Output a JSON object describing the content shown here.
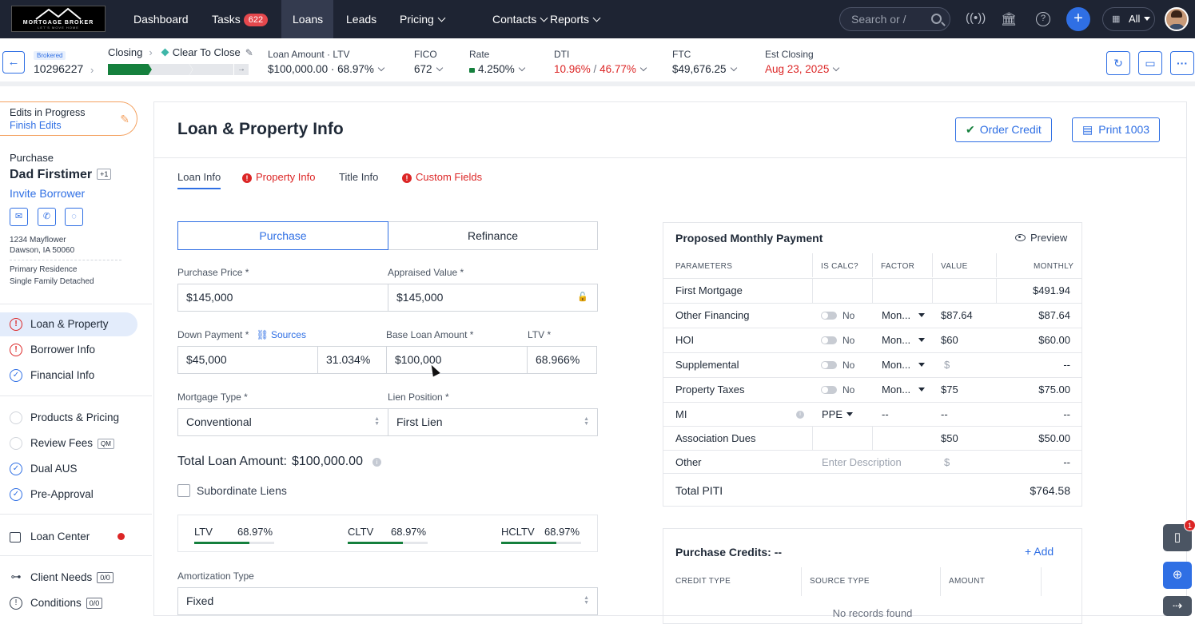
{
  "logo": {
    "brand": "MORTGAGE BROKER",
    "tagline": "LET'S MOVE HOME"
  },
  "nav": {
    "items": [
      {
        "label": "Dashboard"
      },
      {
        "label": "Tasks",
        "badge": "622"
      },
      {
        "label": "Loans"
      },
      {
        "label": "Leads"
      },
      {
        "label": "Pricing"
      },
      {
        "label": "Contacts"
      },
      {
        "label": "Reports"
      }
    ],
    "search_placeholder": "Search or /",
    "filter_label": "All"
  },
  "subheader": {
    "brokered": "Brokered",
    "loan_number": "10296227",
    "stage_from": "Closing",
    "stage_to": "Clear To Close",
    "metrics": {
      "loan_amount_label": "Loan Amount · LTV",
      "loan_amount_value": "$100,000.00 · 68.97%",
      "fico_label": "FICO",
      "fico_value": "672",
      "rate_label": "Rate",
      "rate_value": "4.250%",
      "dti_label": "DTI",
      "dti_front": "10.96%",
      "dti_sep": " / ",
      "dti_back": "46.77%",
      "ftc_label": "FTC",
      "ftc_value": "$49,676.25",
      "closing_label": "Est Closing",
      "closing_value": "Aug 23, 2025"
    }
  },
  "sidebar": {
    "edits_title": "Edits in Progress",
    "edits_link": "Finish Edits",
    "purpose": "Purchase",
    "borrower": "Dad Firstimer",
    "borrower_extra": "+1",
    "invite": "Invite Borrower",
    "address1": "1234 Mayflower",
    "address2": "Dawson, IA 50060",
    "occupancy": "Primary Residence",
    "property_type": "Single Family Detached",
    "items": [
      {
        "label": "Loan & Property",
        "status": "warn"
      },
      {
        "label": "Borrower Info",
        "status": "warn"
      },
      {
        "label": "Financial Info",
        "status": "done"
      },
      {
        "label": "Products & Pricing",
        "status": "todo"
      },
      {
        "label": "Review Fees",
        "status": "todo",
        "tag": "QM"
      },
      {
        "label": "Dual AUS",
        "status": "done"
      },
      {
        "label": "Pre-Approval",
        "status": "done"
      },
      {
        "label": "Loan Center"
      },
      {
        "label": "Client Needs",
        "count": "0/0"
      },
      {
        "label": "Conditions",
        "count": "0/0"
      }
    ]
  },
  "main": {
    "title": "Loan & Property Info",
    "order_credit": "Order Credit",
    "print": "Print 1003",
    "tabs": [
      {
        "label": "Loan Info"
      },
      {
        "label": "Property Info"
      },
      {
        "label": "Title Info"
      },
      {
        "label": "Custom Fields"
      }
    ],
    "purpose_toggle": {
      "purchase": "Purchase",
      "refinance": "Refinance"
    },
    "fields": {
      "purchase_price_label": "Purchase Price *",
      "purchase_price": "$145,000",
      "appraised_label": "Appraised Value *",
      "appraised": "$145,000",
      "down_payment_label": "Down Payment *",
      "sources_link": "Sources",
      "down_payment": "$45,000",
      "down_pct": "31.034%",
      "base_loan_label": "Base Loan Amount *",
      "base_loan": "$100,000",
      "ltv_label": "LTV *",
      "ltv": "68.966%",
      "mortgage_type_label": "Mortgage Type *",
      "mortgage_type": "Conventional",
      "lien_label": "Lien Position *",
      "lien": "First Lien",
      "total_loan_label": "Total Loan Amount:",
      "total_loan": "$100,000.00",
      "subordinate": "Subordinate Liens",
      "amort_label": "Amortization Type",
      "amort": "Fixed"
    },
    "ratios": [
      {
        "label": "LTV",
        "value": "68.97%",
        "fraction": 0.69
      },
      {
        "label": "CLTV",
        "value": "68.97%",
        "fraction": 0.69
      },
      {
        "label": "HCLTV",
        "value": "68.97%",
        "fraction": 0.69
      }
    ]
  },
  "payment": {
    "title": "Proposed Monthly Payment",
    "preview": "Preview",
    "headers": [
      "PARAMETERS",
      "IS CALC?",
      "FACTOR",
      "VALUE",
      "MONTHLY"
    ],
    "rows": [
      {
        "param": "First Mortgage",
        "calc": "",
        "factor": "",
        "value": "",
        "monthly": "$491.94"
      },
      {
        "param": "Other Financing",
        "calc": "No",
        "factor": "Mon...",
        "value": "$87.64",
        "monthly": "$87.64"
      },
      {
        "param": "HOI",
        "calc": "No",
        "factor": "Mon...",
        "value": "$60",
        "monthly": "$60.00"
      },
      {
        "param": "Supplemental",
        "calc": "No",
        "factor": "Mon...",
        "value": "$",
        "monthly": "--"
      },
      {
        "param": "Property Taxes",
        "calc": "No",
        "factor": "Mon...",
        "value": "$75",
        "monthly": "$75.00"
      },
      {
        "param": "MI",
        "calc": "PPE",
        "factor": "--",
        "value": "--",
        "monthly": "--"
      },
      {
        "param": "Association Dues",
        "calc": "",
        "factor": "",
        "value": "$50",
        "monthly": "$50.00"
      },
      {
        "param": "Other",
        "calc": "Enter Description",
        "factor": "",
        "value": "$",
        "monthly": "--"
      }
    ],
    "total_label": "Total PITI",
    "total_value": "$764.58"
  },
  "credits": {
    "title": "Purchase Credits: --",
    "add": "+ Add",
    "headers": [
      "CREDIT TYPE",
      "SOURCE TYPE",
      "AMOUNT"
    ],
    "empty": "No records found"
  },
  "fab": {
    "badge": "1"
  }
}
